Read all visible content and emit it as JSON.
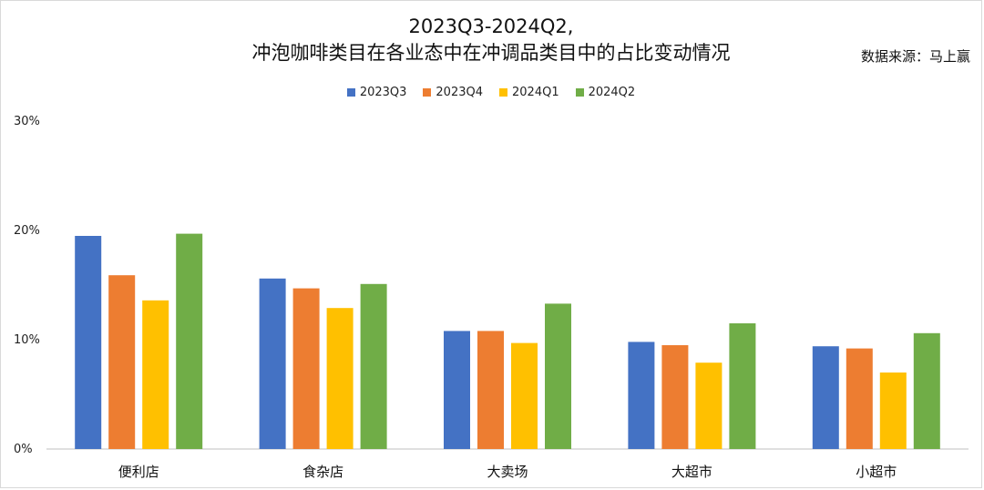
{
  "title_line1": "2023Q3-2024Q2,",
  "title_line2": "冲泡咖啡类目在各业态中在冲调品类目中的占比变动情况",
  "source": "数据来源：马上赢",
  "colors": {
    "2023Q3": "#4472C4",
    "2023Q4": "#ED7D31",
    "2024Q1": "#FFC000",
    "2024Q2": "#70AD47"
  },
  "chart_data": {
    "type": "bar",
    "title": "2023Q3-2024Q2, 冲泡咖啡类目在各业态中在冲调品类目中的占比变动情况",
    "categories": [
      "便利店",
      "食杂店",
      "大卖场",
      "大超市",
      "小超市"
    ],
    "series": [
      {
        "name": "2023Q3",
        "values": [
          19.5,
          15.6,
          10.8,
          9.8,
          9.4
        ]
      },
      {
        "name": "2023Q4",
        "values": [
          15.9,
          14.7,
          10.8,
          9.5,
          9.2
        ]
      },
      {
        "name": "2024Q1",
        "values": [
          13.6,
          12.9,
          9.7,
          7.9,
          7.0
        ]
      },
      {
        "name": "2024Q2",
        "values": [
          19.7,
          15.1,
          13.3,
          11.5,
          10.6
        ]
      }
    ],
    "yticks": [
      "0%",
      "10%",
      "20%",
      "30%"
    ],
    "ylim": [
      0,
      30
    ],
    "xlabel": "",
    "ylabel": "",
    "legend_position": "top",
    "grid": false
  }
}
